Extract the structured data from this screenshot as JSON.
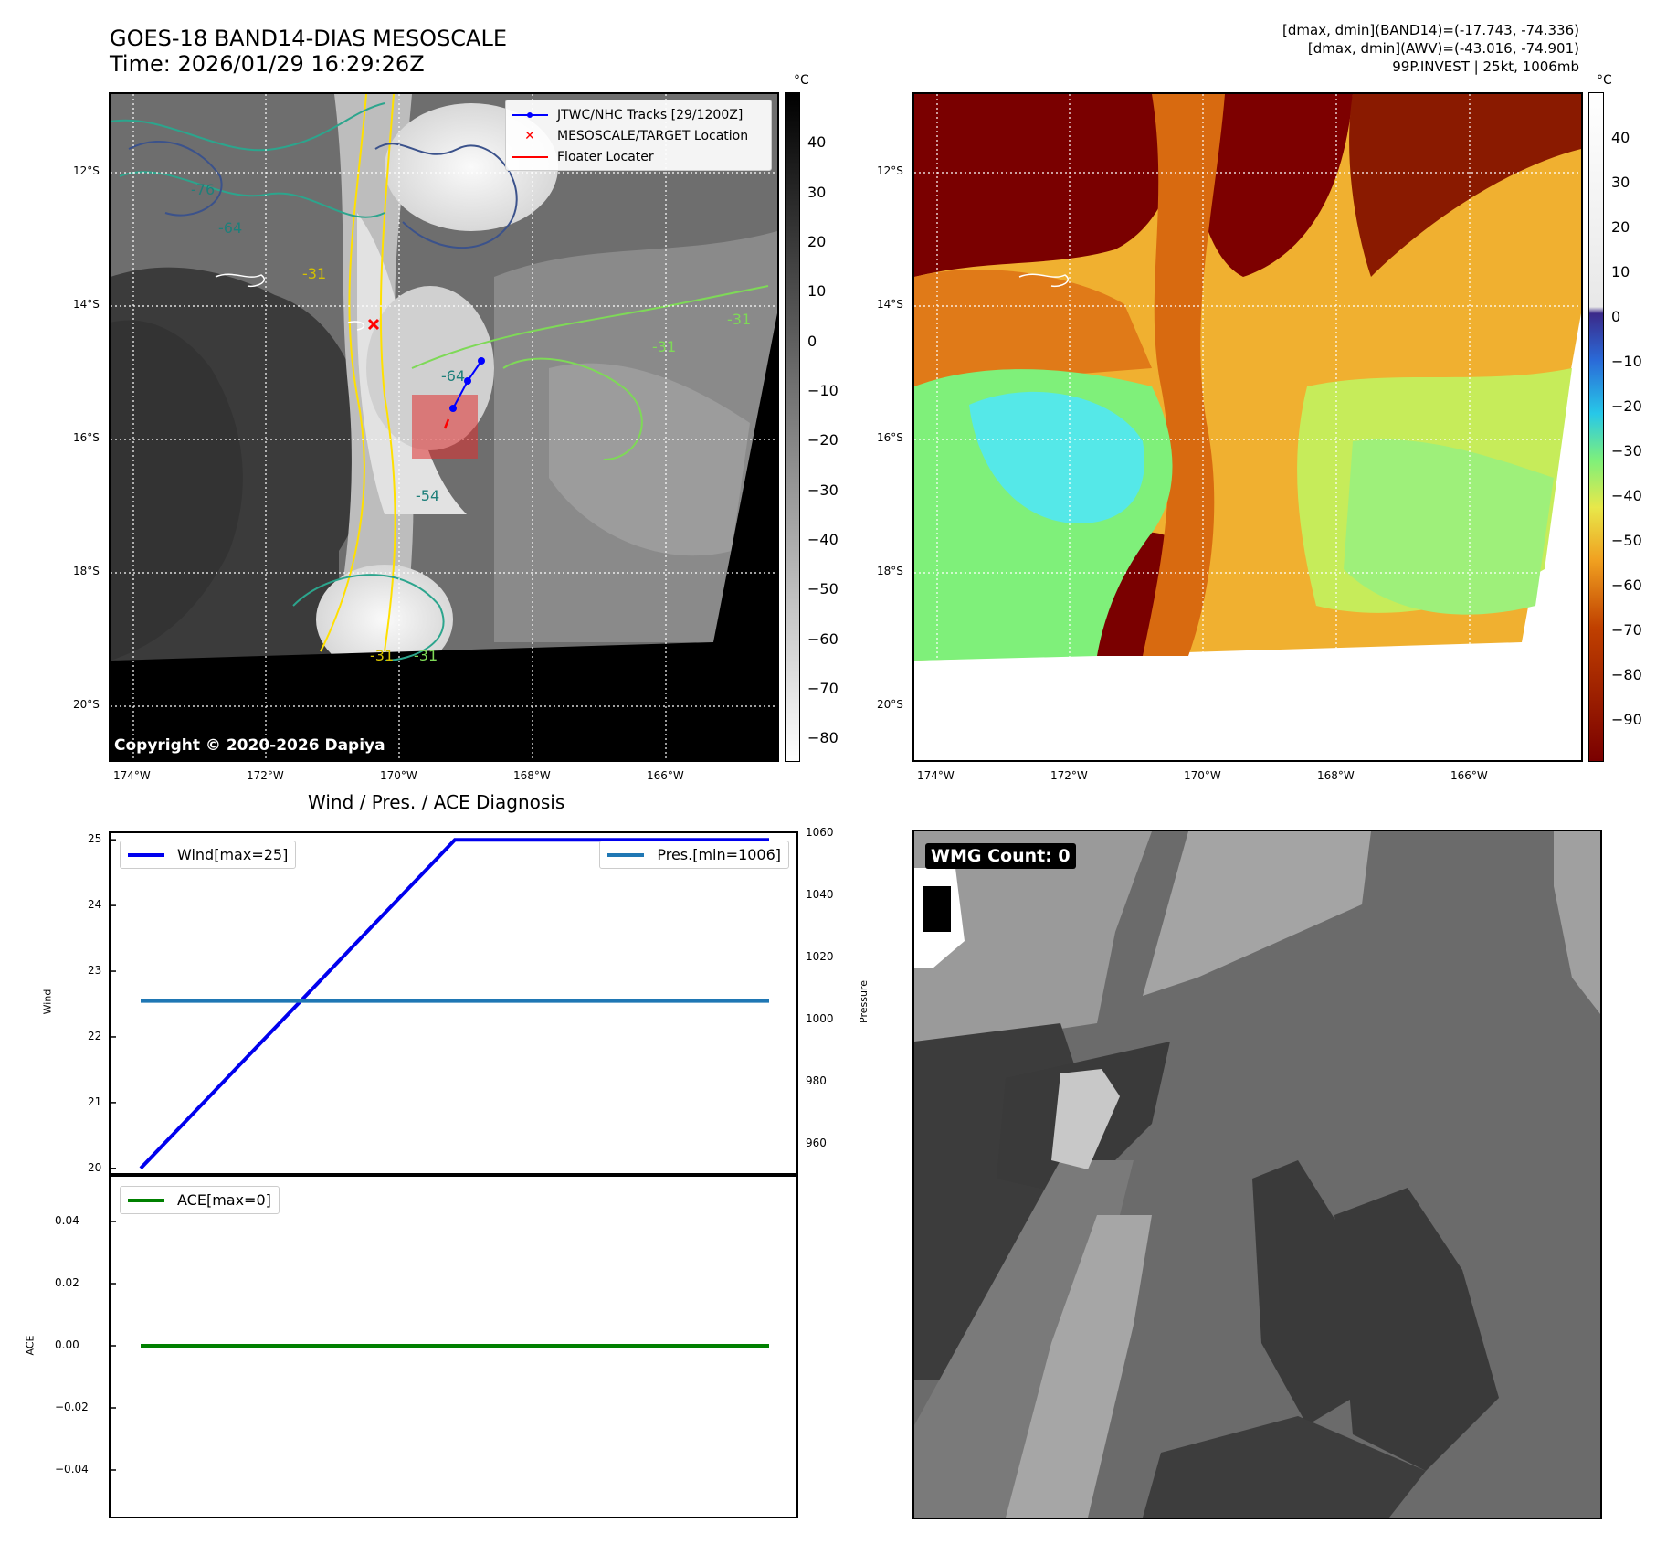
{
  "header": {
    "title_line1": "GOES-18 BAND14-DIAS MESOSCALE",
    "title_line2": "Time: 2026/01/29 16:29:26Z",
    "info_line1": "[dmax, dmin](BAND14)=(-17.743, -74.336)",
    "info_line2": "[dmax, dmin](AWV)=(-43.016, -74.901)",
    "info_line3": "99P.INVEST | 25kt, 1006mb"
  },
  "map_left": {
    "lat_labels": [
      "12°S",
      "14°S",
      "16°S",
      "18°S",
      "20°S"
    ],
    "lon_labels": [
      "174°W",
      "172°W",
      "170°W",
      "168°W",
      "166°W"
    ],
    "copyright": "Copyright © 2020-2026 Dapiya",
    "contour_labels": [
      "-76",
      "-64",
      "-31",
      "-31",
      "-31",
      "-64",
      "-54",
      "-31",
      "-31"
    ],
    "legend": {
      "track": "JTWC/NHC Tracks [29/1200Z]",
      "target": "MESOSCALE/TARGET Location",
      "floater": "Floater Locater"
    },
    "colorbar": {
      "unit": "°C",
      "ticks": [
        "40",
        "30",
        "20",
        "10",
        "0",
        "−10",
        "−20",
        "−30",
        "−40",
        "−50",
        "−60",
        "−70",
        "−80"
      ]
    },
    "colors": {
      "track": "#0000ff",
      "target": "#ff0000",
      "floater": "#ff0000"
    }
  },
  "map_right": {
    "lat_labels": [
      "12°S",
      "14°S",
      "16°S",
      "18°S",
      "20°S"
    ],
    "lon_labels": [
      "174°W",
      "172°W",
      "170°W",
      "168°W",
      "166°W"
    ],
    "colorbar": {
      "unit": "°C",
      "ticks": [
        "40",
        "30",
        "20",
        "10",
        "0",
        "−10",
        "−20",
        "−30",
        "−40",
        "−50",
        "−60",
        "−70",
        "−80",
        "−90"
      ]
    }
  },
  "diagnosis": {
    "title": "Wind / Pres. / ACE Diagnosis",
    "wind_legend": "Wind[max=25]",
    "pres_legend": "Pres.[min=1006]",
    "ace_legend": "ACE[max=0]",
    "wind_axis_label": "Wind",
    "pres_axis_label": "Pressure",
    "ace_axis_label": "ACE",
    "colors": {
      "wind": "#0000ee",
      "pres": "#1f77b4",
      "ace": "#008000"
    }
  },
  "wmg": {
    "label": "WMG Count: 0"
  },
  "chart_data": [
    {
      "type": "line",
      "title": "Wind / Pres. / ACE Diagnosis",
      "ylabel": "Wind",
      "ylim": [
        19.9,
        25.1
      ],
      "yticks": [
        20,
        21,
        22,
        23,
        24,
        25
      ],
      "y2label": "Pressure",
      "y2lim": [
        950,
        1060
      ],
      "y2ticks": [
        960,
        980,
        1000,
        1020,
        1040,
        1060
      ],
      "series": [
        {
          "name": "Wind[max=25]",
          "axis": "left",
          "x": [
            0,
            1,
            2
          ],
          "values": [
            20,
            25,
            25
          ]
        },
        {
          "name": "Pres.[min=1006]",
          "axis": "right",
          "x": [
            0,
            2
          ],
          "values": [
            1006,
            1006
          ]
        }
      ],
      "legend": "top-left / top-right"
    },
    {
      "type": "line",
      "ylabel": "ACE",
      "ylim": [
        -0.055,
        0.055
      ],
      "yticks": [
        0.04,
        0.02,
        0.0,
        -0.02,
        -0.04
      ],
      "ytick_labels": [
        "0.04",
        "0.02",
        "0.00",
        "−0.02",
        "−0.04"
      ],
      "series": [
        {
          "name": "ACE[max=0]",
          "x": [
            0,
            2
          ],
          "values": [
            0,
            0
          ]
        }
      ],
      "legend": "top-left"
    }
  ]
}
